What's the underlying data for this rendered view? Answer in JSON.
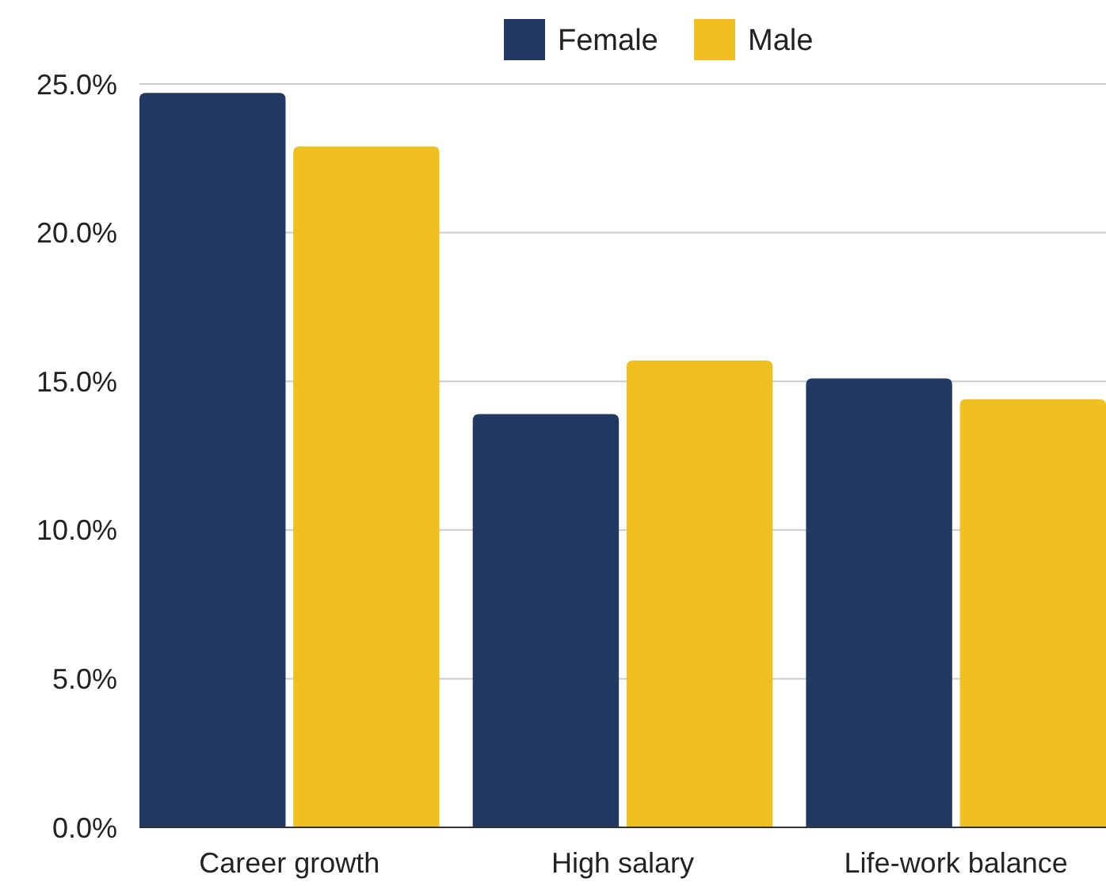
{
  "chart_data": {
    "type": "bar",
    "categories": [
      "Career growth",
      "High salary",
      "Life-work balance"
    ],
    "series": [
      {
        "name": "Female",
        "color": "#213963",
        "values": [
          24.7,
          13.9,
          15.1
        ]
      },
      {
        "name": "Male",
        "color": "#f0c020",
        "values": [
          22.9,
          15.7,
          14.4
        ]
      }
    ],
    "ylim": [
      0,
      25
    ],
    "yticks": [
      {
        "value": 0,
        "label": "0.0%"
      },
      {
        "value": 5,
        "label": "5.0%"
      },
      {
        "value": 10,
        "label": "10.0%"
      },
      {
        "value": 15,
        "label": "15.0%"
      },
      {
        "value": 20,
        "label": "20.0%"
      },
      {
        "value": 25,
        "label": "25.0%"
      }
    ],
    "grid": "y",
    "legend": "top"
  }
}
